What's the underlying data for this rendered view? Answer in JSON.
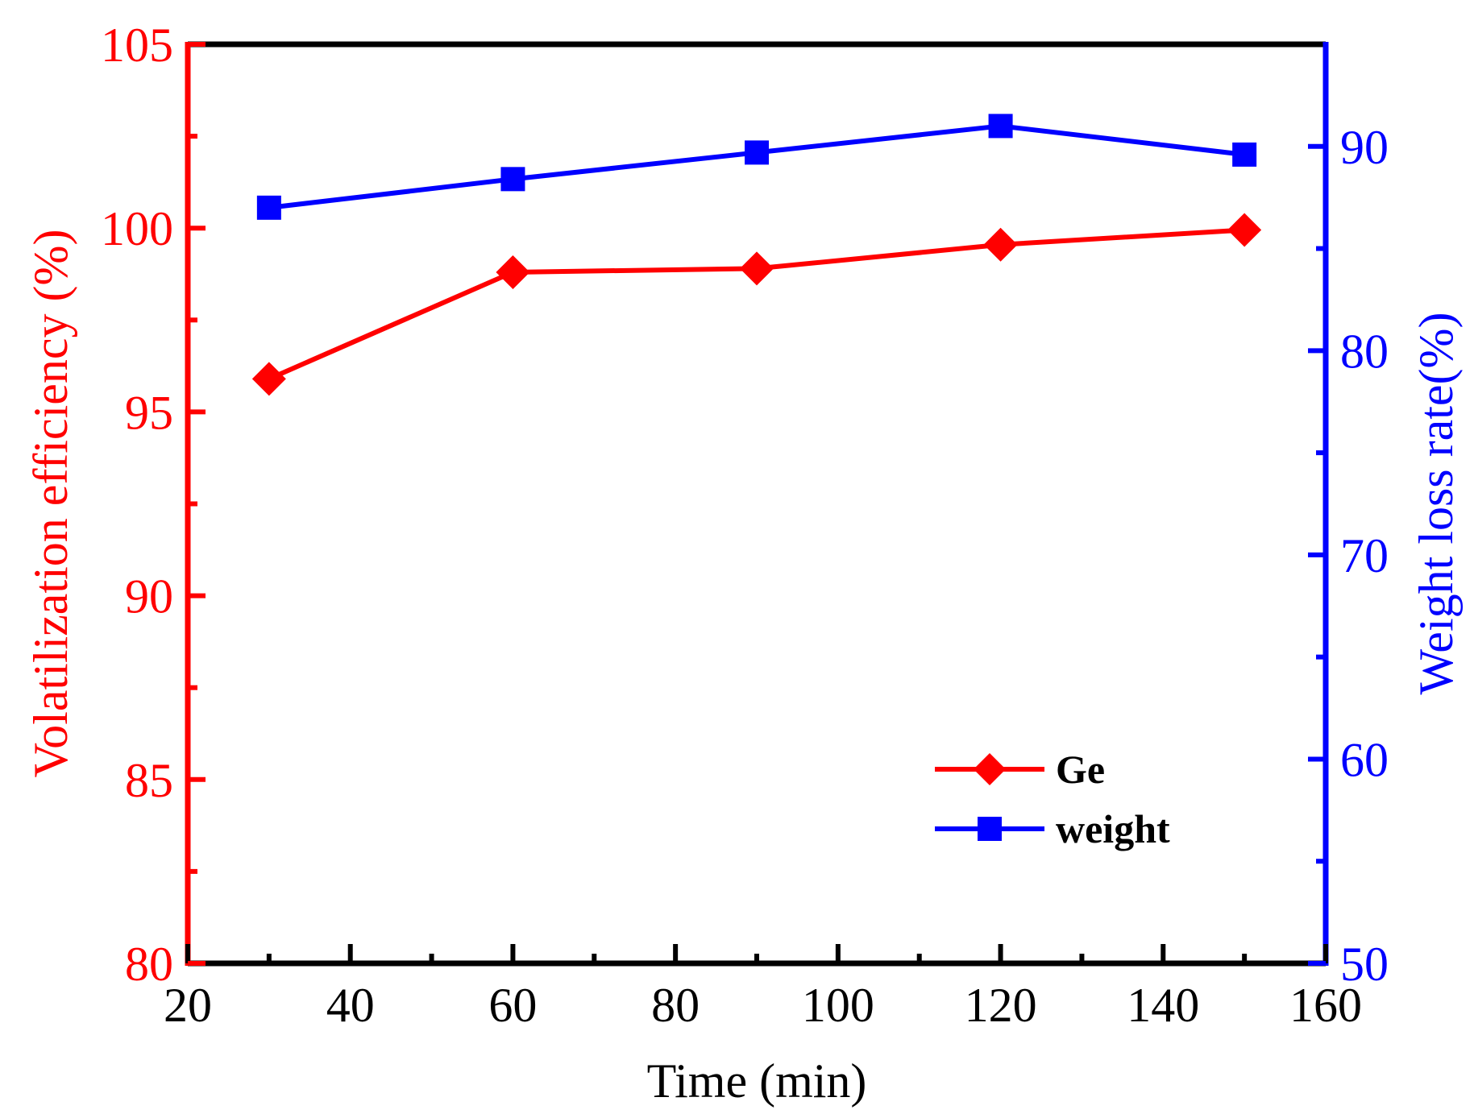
{
  "chart_data": {
    "type": "line",
    "x": [
      30,
      60,
      90,
      120,
      150
    ],
    "xlabel": "Time (min)",
    "xlim": [
      20,
      160
    ],
    "xticks": [
      "20",
      "40",
      "60",
      "80",
      "100",
      "120",
      "140",
      "160"
    ],
    "series": [
      {
        "name": "Ge",
        "axis": "left",
        "marker": "diamond",
        "color": "#ff0000",
        "values": [
          95.9,
          98.8,
          98.9,
          99.55,
          99.95
        ]
      },
      {
        "name": "weight",
        "axis": "right",
        "marker": "square",
        "color": "#0000ff",
        "values": [
          87.0,
          88.4,
          89.7,
          91.0,
          89.6
        ]
      }
    ],
    "y_left": {
      "label": "Volatilization efficiency (%)",
      "ylim": [
        80,
        105
      ],
      "ticks": [
        "80",
        "85",
        "90",
        "95",
        "100",
        "105"
      ],
      "color": "#ff0000"
    },
    "y_right": {
      "label": "Weight loss rate(%)",
      "ylim": [
        50,
        95
      ],
      "ticks": [
        "50",
        "60",
        "70",
        "80",
        "90"
      ],
      "color": "#0000ff"
    },
    "legend": {
      "position": "bottom-right",
      "entries": [
        "Ge",
        "weight"
      ]
    }
  }
}
